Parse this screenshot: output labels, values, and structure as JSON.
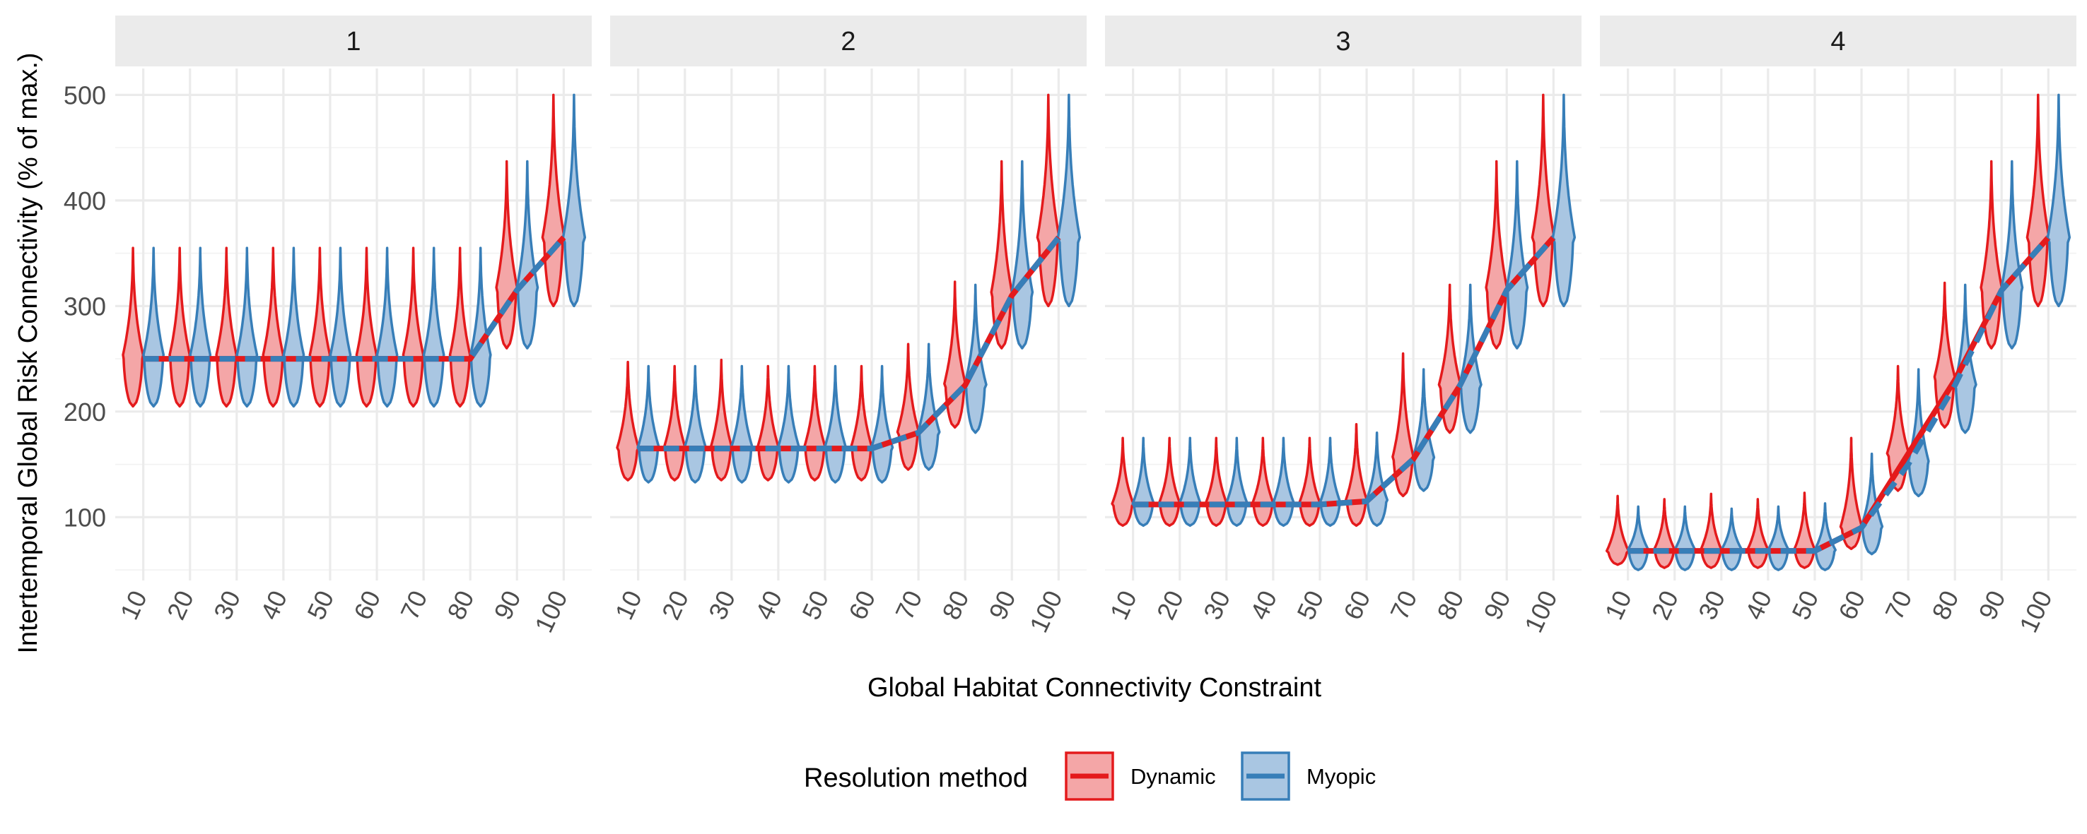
{
  "chart_data": {
    "type": "violin",
    "facet_labels": [
      "1",
      "2",
      "3",
      "4"
    ],
    "xlabel": "Global Habitat Connectivity Constraint",
    "ylabel": "Intertemporal Global Risk Connectivity (% of max.)",
    "x_categories": [
      "10",
      "20",
      "30",
      "40",
      "50",
      "60",
      "70",
      "80",
      "90",
      "100"
    ],
    "ylim": [
      40,
      525
    ],
    "y_ticks": [
      "100",
      "200",
      "300",
      "400",
      "500"
    ],
    "legend": {
      "title": "Resolution method",
      "position": "bottom",
      "entries": [
        {
          "label": "Dynamic",
          "line": "#e41a1c",
          "fill": "#f4a6a7"
        },
        {
          "label": "Myopic",
          "line": "#377eb8",
          "fill": "#a9c6e2"
        }
      ]
    },
    "series_lines": {
      "Dynamic": "solid",
      "Myopic": "dashed"
    },
    "facets": [
      {
        "facet": "1",
        "Dynamic": {
          "median": [
            250,
            250,
            250,
            250,
            250,
            250,
            250,
            250,
            315,
            365
          ],
          "min": [
            205,
            205,
            205,
            205,
            205,
            205,
            205,
            205,
            260,
            300
          ],
          "max": [
            355,
            355,
            355,
            355,
            355,
            355,
            355,
            355,
            437,
            500
          ]
        },
        "Myopic": {
          "median": [
            250,
            250,
            250,
            250,
            250,
            250,
            250,
            250,
            315,
            365
          ],
          "min": [
            205,
            205,
            205,
            205,
            205,
            205,
            205,
            205,
            260,
            300
          ],
          "max": [
            355,
            355,
            355,
            355,
            355,
            355,
            355,
            355,
            437,
            500
          ]
        }
      },
      {
        "facet": "2",
        "Dynamic": {
          "median": [
            165,
            165,
            165,
            165,
            165,
            165,
            180,
            225,
            310,
            365
          ],
          "min": [
            135,
            135,
            135,
            135,
            135,
            135,
            145,
            185,
            260,
            300
          ],
          "max": [
            247,
            243,
            249,
            243,
            243,
            243,
            264,
            323,
            437,
            500
          ]
        },
        "Myopic": {
          "median": [
            165,
            165,
            165,
            165,
            165,
            165,
            180,
            225,
            310,
            365
          ],
          "min": [
            133,
            133,
            133,
            133,
            133,
            133,
            145,
            180,
            260,
            300
          ],
          "max": [
            243,
            243,
            243,
            243,
            243,
            243,
            264,
            320,
            437,
            500
          ]
        }
      },
      {
        "facet": "3",
        "Dynamic": {
          "median": [
            112,
            112,
            112,
            112,
            112,
            115,
            155,
            225,
            315,
            365
          ],
          "min": [
            92,
            92,
            92,
            92,
            92,
            92,
            120,
            180,
            260,
            300
          ],
          "max": [
            175,
            175,
            175,
            175,
            175,
            188,
            255,
            320,
            437,
            500
          ]
        },
        "Myopic": {
          "median": [
            112,
            112,
            112,
            112,
            112,
            115,
            155,
            225,
            315,
            365
          ],
          "min": [
            92,
            92,
            92,
            92,
            92,
            92,
            125,
            180,
            260,
            300
          ],
          "max": [
            175,
            175,
            175,
            175,
            175,
            180,
            240,
            320,
            437,
            500
          ]
        }
      },
      {
        "facet": "4",
        "Dynamic": {
          "median": [
            68,
            68,
            68,
            68,
            68,
            90,
            160,
            230,
            315,
            365
          ],
          "min": [
            55,
            52,
            52,
            52,
            52,
            70,
            125,
            185,
            260,
            300
          ],
          "max": [
            120,
            117,
            122,
            117,
            123,
            175,
            243,
            322,
            437,
            500
          ]
        },
        "Myopic": {
          "median": [
            68,
            68,
            68,
            68,
            68,
            90,
            150,
            225,
            315,
            365
          ],
          "min": [
            50,
            50,
            50,
            50,
            50,
            65,
            120,
            180,
            260,
            300
          ],
          "max": [
            110,
            110,
            108,
            110,
            113,
            160,
            240,
            320,
            437,
            500
          ]
        }
      }
    ]
  }
}
